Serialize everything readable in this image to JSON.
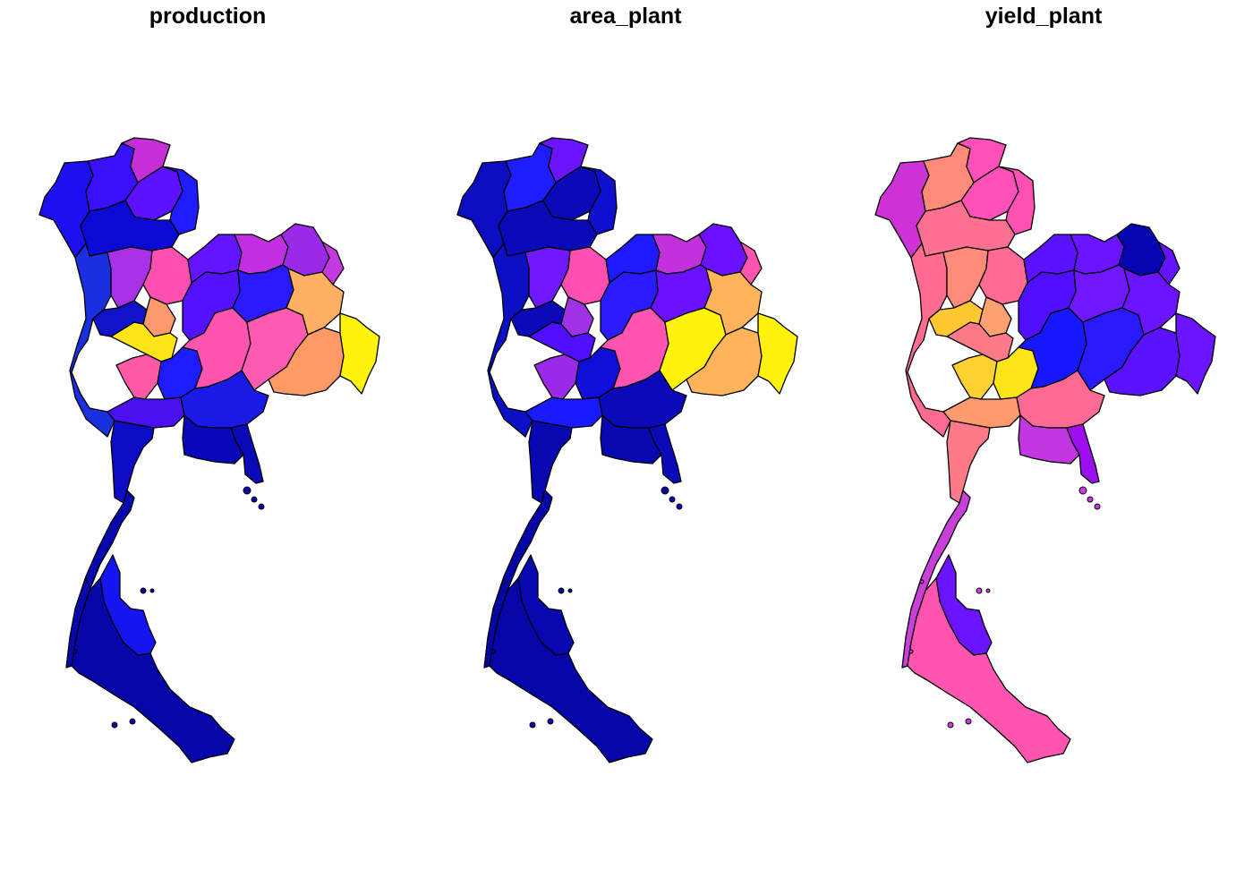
{
  "figure": {
    "panels": [
      {
        "title": "production",
        "fills": {
          "north_w": "#1d10f0",
          "north_w2": "#3a0ffa",
          "north_c": "#5c12ff",
          "north_top": "#c42fd8",
          "north_e": "#1f1dff",
          "north_e2": "#0a0ad4",
          "lower_n1": "#a830e6",
          "lower_n2": "#ff4fb0",
          "lower_n3": "#ff9a6e",
          "lower_n4": "#ffe41a",
          "west": "#1a2fe0",
          "ne_a": "#6414ff",
          "ne_b": "#c030e0",
          "ne_c": "#9a2ae8",
          "ne_d": "#c43ae0",
          "ne_e": "#ff55b0",
          "ne_f": "#5212ff",
          "ne_g": "#2a1aff",
          "ne_h": "#ff9a66",
          "ne_i": "#fff20c",
          "ne_j": "#ff5ab2",
          "ne_k": "#ffb060",
          "central_a": "#ff5aa8",
          "central_b": "#1212c8",
          "central_c": "#1c1cff",
          "central_d": "#4a10f0",
          "east_a": "#1a1ae6",
          "east_b": "#0808b8",
          "east_c": "#0a0ab8",
          "south_a": "#0c0cc4",
          "south_b": "#0808b0",
          "south_c": "#1515ef",
          "south_d": "#0505a8"
        }
      },
      {
        "title": "area_plant",
        "fills": {
          "north_w": "#0c0cc0",
          "north_w2": "#1d1dff",
          "north_c": "#0a0ab8",
          "north_top": "#6a14ff",
          "north_e": "#0f0fcf",
          "north_e2": "#0a0ab8",
          "lower_n1": "#7018ff",
          "lower_n2": "#ff4fb0",
          "lower_n3": "#a032e6",
          "lower_n4": "#5010ff",
          "west": "#0c10c4",
          "ne_a": "#1e1aff",
          "ne_b": "#c232dc",
          "ne_c": "#6a12ff",
          "ne_d": "#ff55b0",
          "ne_e": "#ff55b0",
          "ne_f": "#2a1cff",
          "ne_g": "#6a12ff",
          "ne_h": "#ffb45c",
          "ne_i": "#fff20c",
          "ne_j": "#fff20c",
          "ne_k": "#ffb45c",
          "central_a": "#9a2ae8",
          "central_b": "#0a0ab8",
          "central_c": "#0f0fd8",
          "central_d": "#1a1aff",
          "east_a": "#0a0ab8",
          "east_b": "#0808b0",
          "east_c": "#0a0ab8",
          "south_a": "#0808b0",
          "south_b": "#0505a8",
          "south_c": "#0808b0",
          "south_d": "#0505a8"
        }
      },
      {
        "title": "yield_plant",
        "fills": {
          "north_w": "#cc32d4",
          "north_w2": "#ff8a7a",
          "north_c": "#ff4fb8",
          "north_top": "#ff4fb8",
          "north_e": "#ff50b4",
          "north_e2": "#ff7090",
          "lower_n1": "#ff8a78",
          "lower_n2": "#ff6a95",
          "lower_n3": "#ffa070",
          "lower_n4": "#ff7a88",
          "west": "#ff6a90",
          "ne_a": "#5a12ff",
          "ne_b": "#6a14ff",
          "ne_c": "#0606b0",
          "ne_d": "#6414ff",
          "ne_e": "#1818ff",
          "ne_f": "#5010ff",
          "ne_g": "#7018ff",
          "ne_h": "#5a12ff",
          "ne_i": "#6a14ff",
          "ne_j": "#2a1aff",
          "ne_k": "#6a14ff",
          "central_a": "#ffd030",
          "central_b": "#ffc830",
          "central_c": "#ffe41a",
          "central_d": "#ff9a6e",
          "east_a": "#ff6a95",
          "east_b": "#c238e0",
          "east_c": "#9c10f0",
          "south_a": "#ff7a88",
          "south_b": "#c840d8",
          "south_c": "#6a14ff",
          "south_d": "#ff55b0"
        }
      }
    ]
  }
}
